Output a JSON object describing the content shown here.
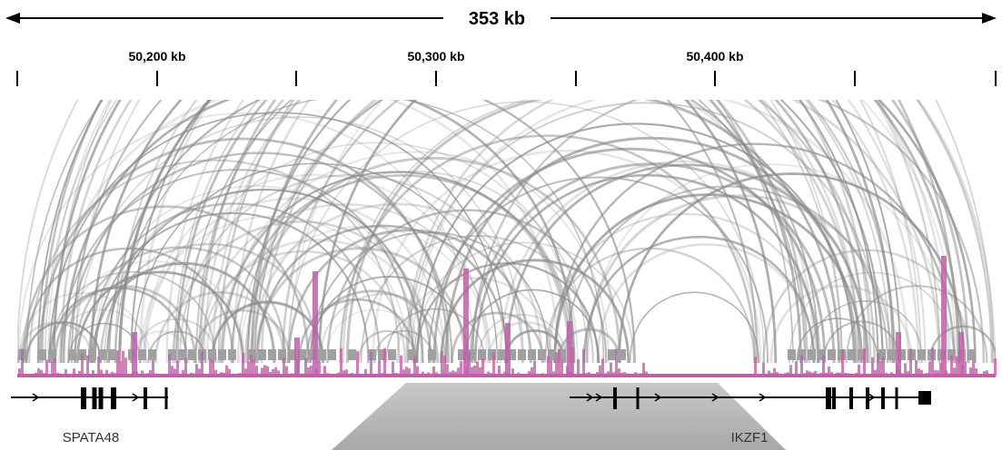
{
  "ruler": {
    "span": "353 kb",
    "ticks": [
      "50,200 kb",
      "50,300 kb",
      "50,400 kb"
    ]
  },
  "genes": [
    "SPATA48",
    "IKZF1"
  ]
}
